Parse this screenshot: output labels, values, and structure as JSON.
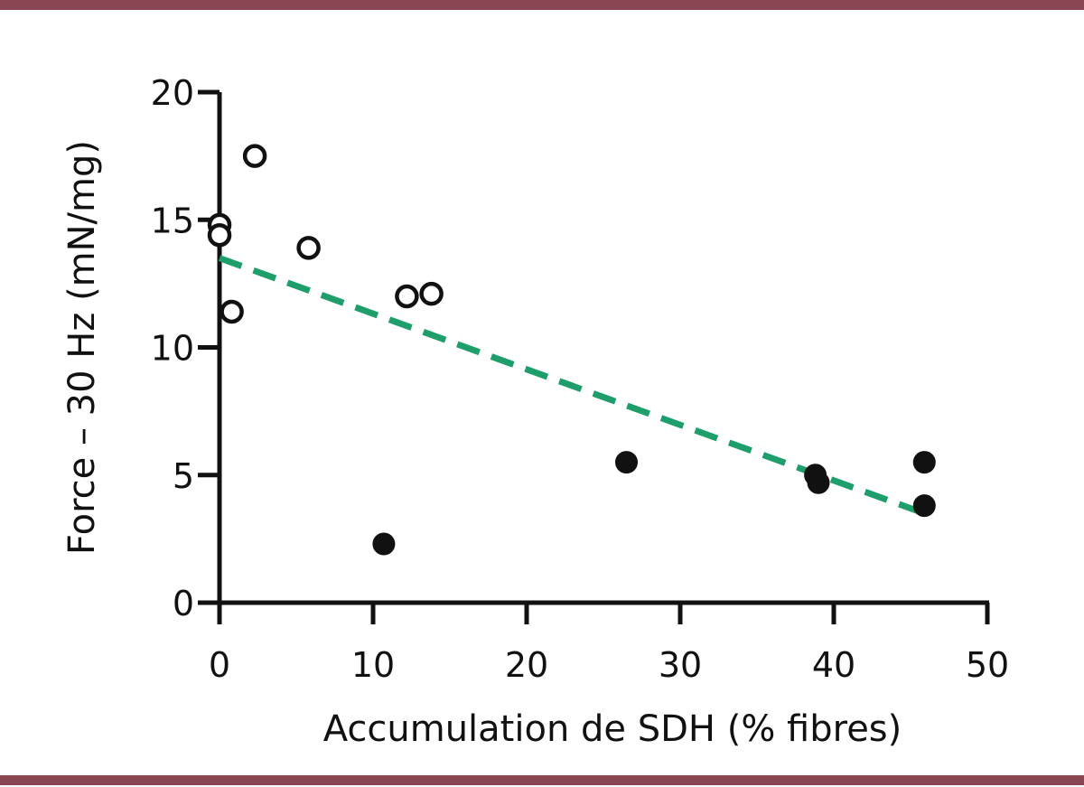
{
  "chart_data": {
    "type": "scatter",
    "xlabel": "Accumulation de SDH (% fibres)",
    "ylabel": "Force – 30 Hz (mN/mg)",
    "xlim": [
      0,
      50
    ],
    "ylim": [
      0,
      20
    ],
    "x_ticks": [
      "0",
      "10",
      "20",
      "30",
      "40",
      "50"
    ],
    "y_ticks": [
      "0",
      "5",
      "10",
      "15",
      "20"
    ],
    "grid": false,
    "series": [
      {
        "style": "open",
        "points": [
          [
            0,
            14.8
          ],
          [
            0,
            14.4
          ],
          [
            0.8,
            11.4
          ],
          [
            2.3,
            17.5
          ],
          [
            5.8,
            13.9
          ],
          [
            12.2,
            12.0
          ],
          [
            13.8,
            12.1
          ]
        ]
      },
      {
        "style": "filled",
        "points": [
          [
            10.7,
            2.3
          ],
          [
            26.5,
            5.5
          ],
          [
            38.8,
            5.0
          ],
          [
            39.0,
            4.7
          ],
          [
            45.9,
            5.5
          ],
          [
            45.9,
            3.8
          ]
        ]
      }
    ],
    "trend_line": {
      "style": "dashed",
      "from": [
        0,
        13.5
      ],
      "to": [
        45.9,
        3.5
      ]
    }
  },
  "colors": {
    "rule": "#8a4652",
    "axis": "#111111",
    "open_marker": "#111111",
    "filled_marker": "#111111",
    "trend_line": "#1e9e6a"
  }
}
